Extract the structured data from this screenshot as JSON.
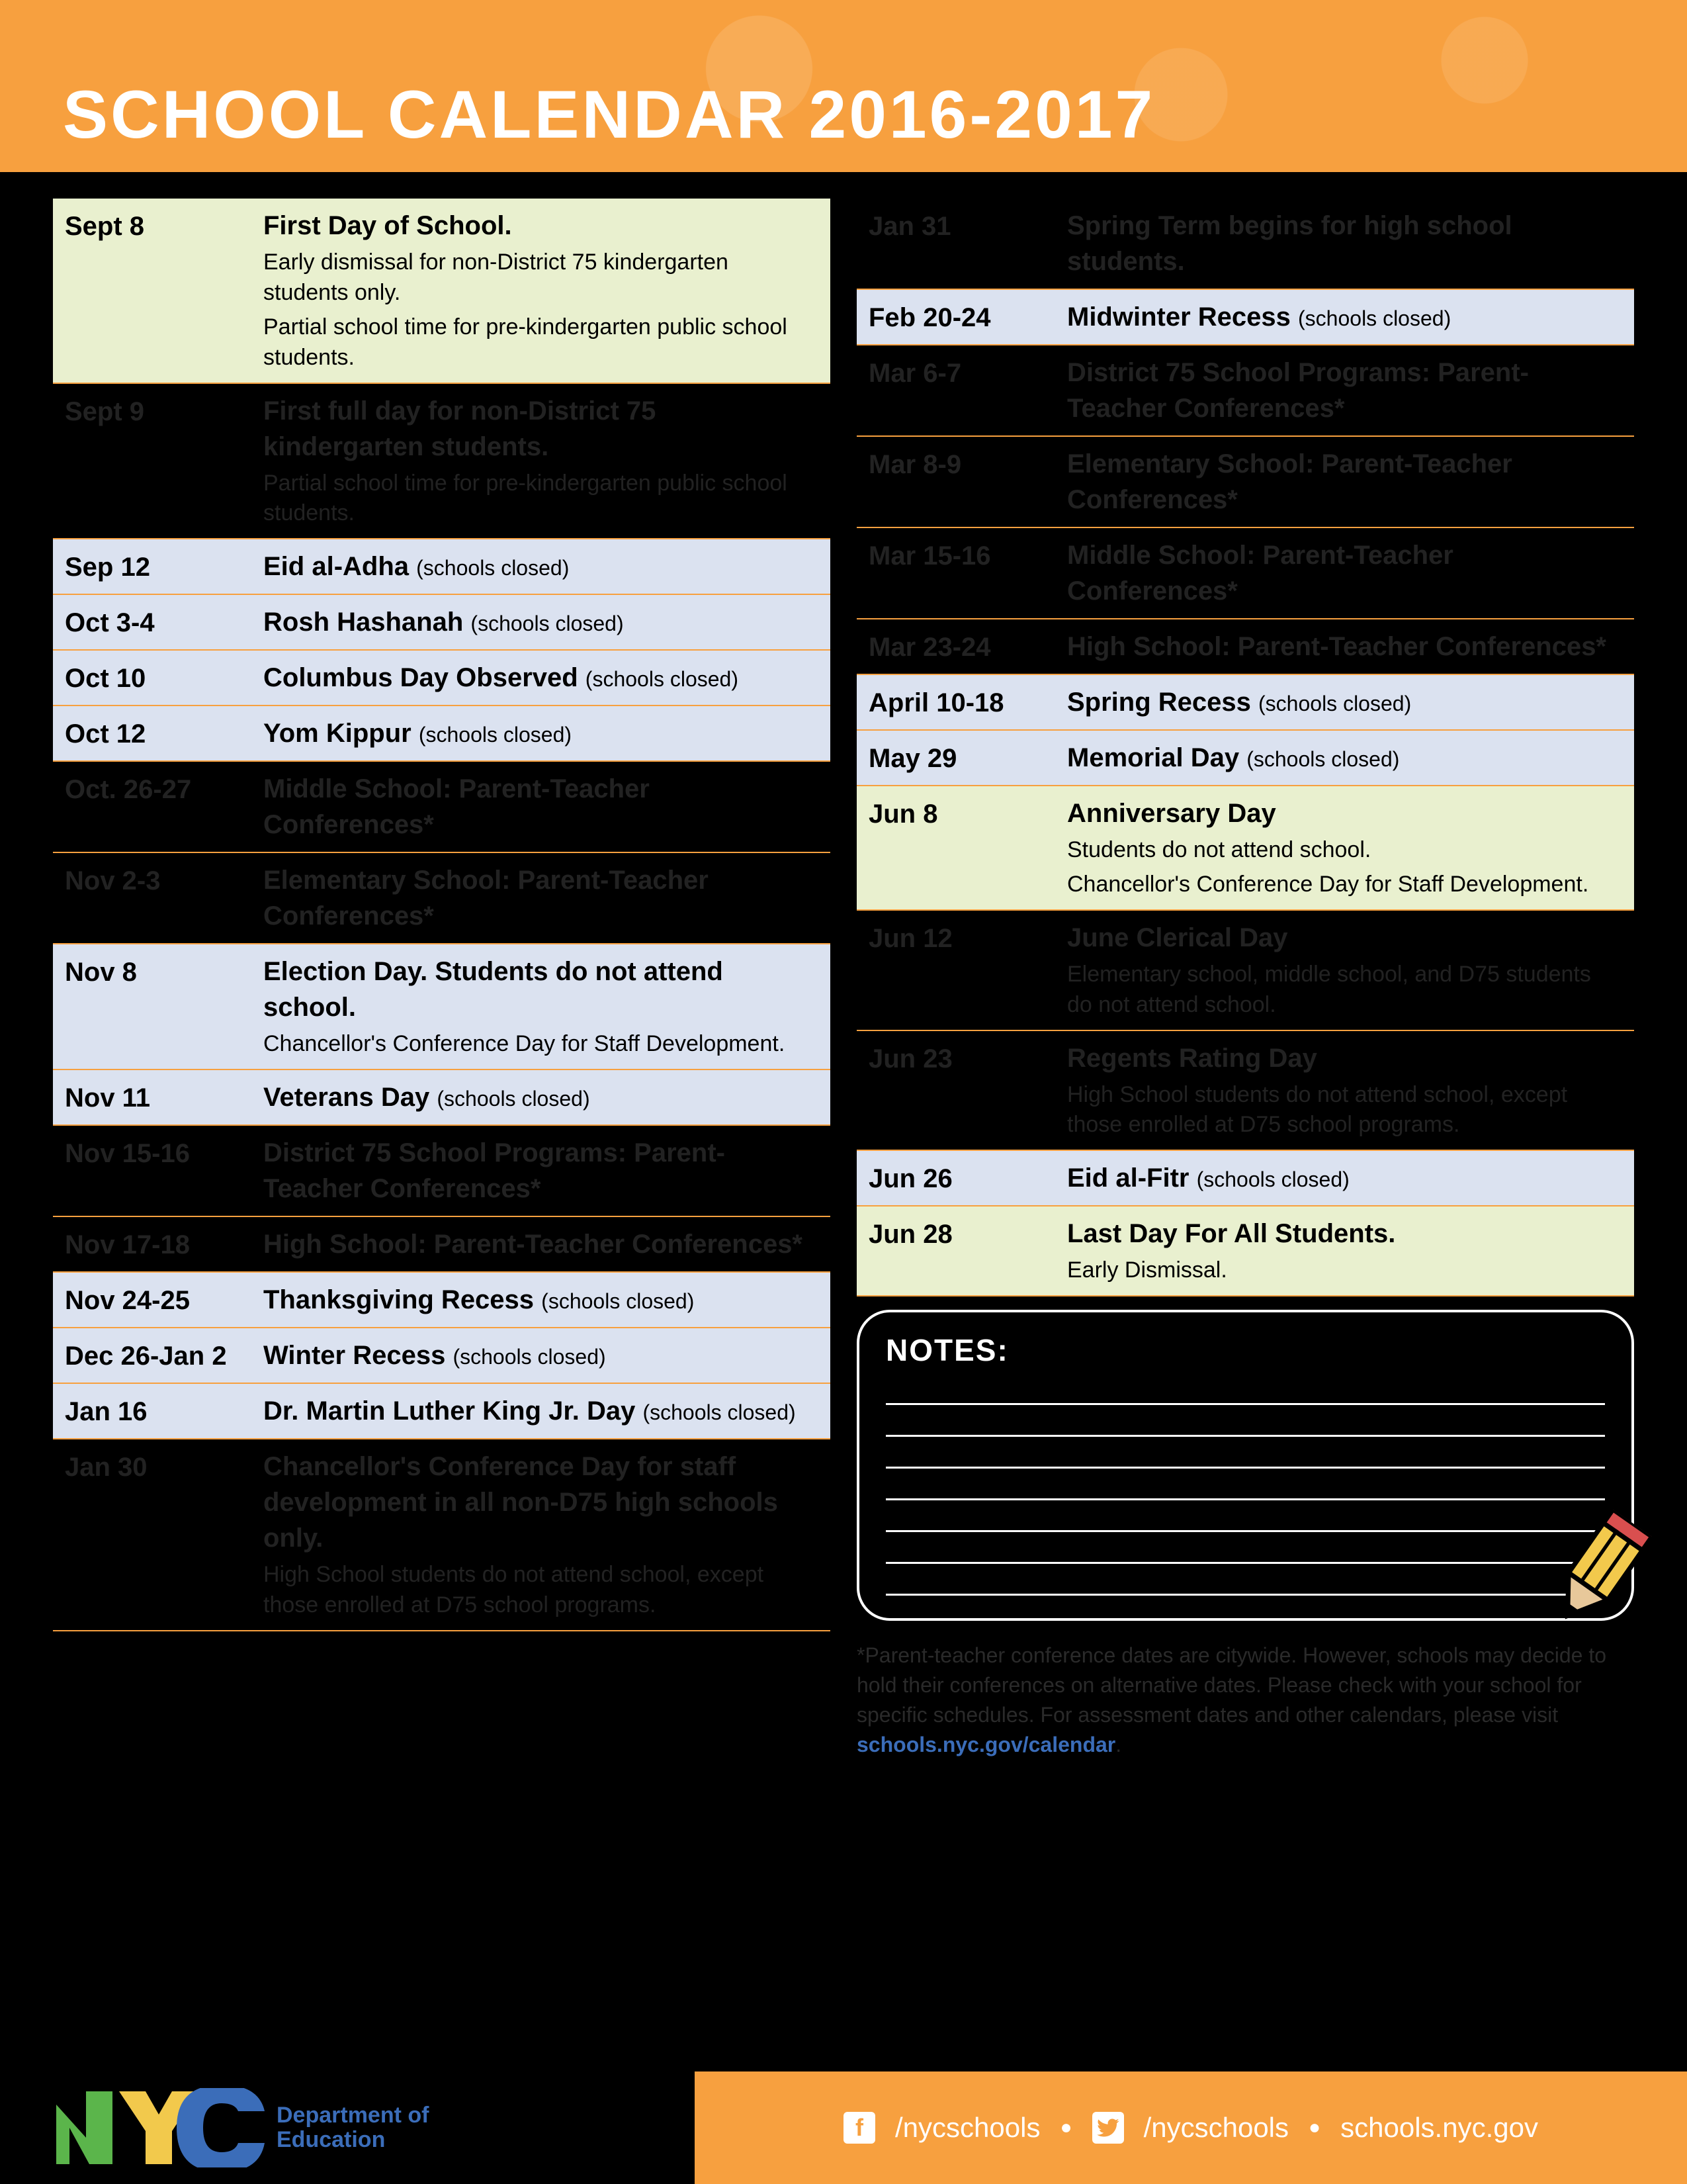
{
  "header": {
    "title": "SCHOOL CALENDAR 2016-2017"
  },
  "colors": {
    "accent_orange": "#f7a03f",
    "row_green": "#e9f0cf",
    "row_blue": "#dbe2f0",
    "background": "#000000",
    "dark_text_on_black": "#222222",
    "nyc_green": "#5bb54b",
    "nyc_yellow": "#f2c94c",
    "nyc_blue": "#3b6db9"
  },
  "left_rows": [
    {
      "date": "Sept 8",
      "variant": "green",
      "title": "First Day of School.",
      "subs": [
        "Early dismissal for non-District 75 kindergarten students only.",
        "Partial school time for pre-kindergarten public school students."
      ]
    },
    {
      "date": "Sept 9",
      "variant": "dark",
      "title": "First full day for non-District 75 kindergarten students.",
      "subs": [
        "Partial school time for pre-kindergarten public school students."
      ]
    },
    {
      "date": "Sep 12",
      "variant": "blue",
      "title": "Eid al-Adha",
      "closed": "(schools closed)"
    },
    {
      "date": "Oct 3-4",
      "variant": "blue",
      "title": "Rosh Hashanah",
      "closed": "(schools closed)"
    },
    {
      "date": "Oct 10",
      "variant": "blue",
      "title": "Columbus Day Observed",
      "closed": "(schools closed)"
    },
    {
      "date": "Oct 12",
      "variant": "blue",
      "title": "Yom Kippur",
      "closed": "(schools closed)"
    },
    {
      "date": "Oct. 26-27",
      "variant": "dark",
      "title": "Middle School: Parent-Teacher Conferences*"
    },
    {
      "date": "Nov 2-3",
      "variant": "dark",
      "title": "Elementary School: Parent-Teacher Conferences*"
    },
    {
      "date": "Nov 8",
      "variant": "blue",
      "title": "Election Day. Students do not attend school.",
      "subs": [
        "Chancellor's Conference Day for Staff Development."
      ]
    },
    {
      "date": "Nov 11",
      "variant": "blue",
      "title": "Veterans Day",
      "closed": "(schools closed)"
    },
    {
      "date": "Nov 15-16",
      "variant": "dark",
      "title": "District 75 School Programs: Parent-Teacher Conferences*"
    },
    {
      "date": "Nov 17-18",
      "variant": "dark",
      "title": "High School: Parent-Teacher Conferences*"
    },
    {
      "date": "Nov 24-25",
      "variant": "blue",
      "title": "Thanksgiving Recess",
      "closed": "(schools closed)"
    },
    {
      "date": "Dec 26-Jan 2",
      "variant": "blue",
      "title": "Winter Recess",
      "closed": "(schools closed)"
    },
    {
      "date": "Jan 16",
      "variant": "blue",
      "title": "Dr. Martin Luther King Jr. Day",
      "closed": "(schools closed)"
    },
    {
      "date": "Jan 30",
      "variant": "dark",
      "title": "Chancellor's Conference Day for staff development in all non-D75 high schools only.",
      "subs": [
        "High School students do not attend school, except those enrolled at D75 school programs."
      ]
    }
  ],
  "right_rows": [
    {
      "date": "Jan 31",
      "variant": "dark",
      "title": "Spring Term begins for high school students."
    },
    {
      "date": "Feb 20-24",
      "variant": "blue",
      "title": "Midwinter Recess",
      "closed": "(schools closed)"
    },
    {
      "date": "Mar 6-7",
      "variant": "dark",
      "title": "District 75 School Programs: Parent-Teacher Conferences*"
    },
    {
      "date": "Mar 8-9",
      "variant": "dark",
      "title": "Elementary School: Parent-Teacher Conferences*"
    },
    {
      "date": "Mar 15-16",
      "variant": "dark",
      "title": "Middle School: Parent-Teacher Conferences*"
    },
    {
      "date": "Mar 23-24",
      "variant": "dark",
      "title": "High School: Parent-Teacher Conferences*"
    },
    {
      "date": "April 10-18",
      "variant": "blue",
      "title": "Spring Recess",
      "closed": "(schools closed)"
    },
    {
      "date": "May 29",
      "variant": "blue",
      "title": "Memorial Day",
      "closed": "(schools closed)"
    },
    {
      "date": "Jun 8",
      "variant": "green",
      "title": "Anniversary Day",
      "subs": [
        "Students do not attend school.",
        "Chancellor's Conference Day for Staff Development."
      ]
    },
    {
      "date": "Jun 12",
      "variant": "dark",
      "title": "June Clerical Day",
      "subs": [
        "Elementary school, middle school, and D75 students do not attend school."
      ]
    },
    {
      "date": "Jun 23",
      "variant": "dark",
      "title": "Regents Rating Day",
      "subs": [
        "High School students do not attend school, except those enrolled at D75 school programs."
      ]
    },
    {
      "date": "Jun 26",
      "variant": "blue",
      "title": "Eid al-Fitr",
      "closed": "(schools closed)"
    },
    {
      "date": "Jun 28",
      "variant": "green",
      "title": "Last Day For All Students.",
      "subs": [
        "Early Dismissal."
      ]
    }
  ],
  "notes": {
    "label": "NOTES:",
    "line_count": 7
  },
  "footnote": {
    "text": "*Parent-teacher conference dates are citywide. However, schools may decide to hold their conferences on alternative dates. Please check with your school for specific schedules. For assessment dates and other calendars, please visit ",
    "link_label": "schools.nyc.gov/calendar"
  },
  "footer": {
    "dept_line1": "Department of",
    "dept_line2": "Education",
    "handle": "/nycschools",
    "site": "schools.nyc.gov"
  }
}
